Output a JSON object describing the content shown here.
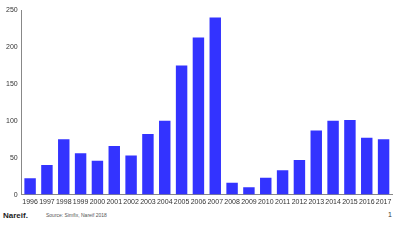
{
  "chart_data": {
    "type": "bar",
    "categories": [
      "1996",
      "1997",
      "1998",
      "1999",
      "2000",
      "2001",
      "2002",
      "2003",
      "2004",
      "2005",
      "2006",
      "2007",
      "2008",
      "2009",
      "2010",
      "2011",
      "2012",
      "2013",
      "2014",
      "2015",
      "2016",
      "2017"
    ],
    "values": [
      22,
      40,
      75,
      56,
      46,
      66,
      53,
      82,
      100,
      175,
      213,
      240,
      16,
      10,
      23,
      33,
      47,
      87,
      100,
      101,
      77,
      75
    ],
    "color": "#3333ff",
    "ylim": [
      0,
      250
    ],
    "yticks": [
      0,
      50,
      100,
      150,
      200,
      250
    ],
    "grid": false,
    "annotations": [
      "Nareif.",
      "Source: Simfix, Nareif 2018",
      "1"
    ]
  }
}
